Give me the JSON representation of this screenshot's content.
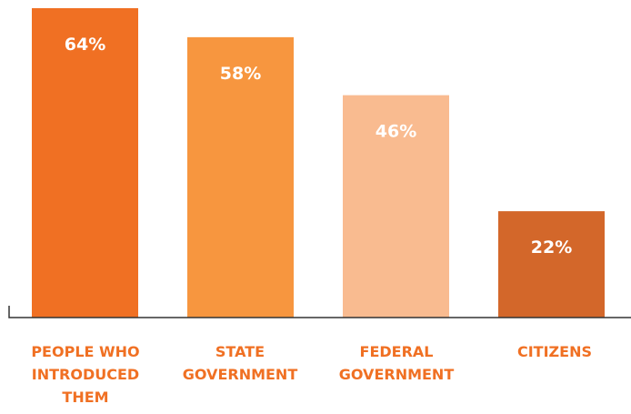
{
  "chart_data": {
    "type": "bar",
    "categories": [
      [
        "PEOPLE WHO",
        "INTRODUCED",
        "THEM"
      ],
      [
        "STATE",
        "GOVERNMENT"
      ],
      [
        "FEDERAL",
        "GOVERNMENT"
      ],
      [
        "CITIZENS"
      ]
    ],
    "values": [
      64,
      58,
      46,
      22
    ],
    "value_labels": [
      "64%",
      "58%",
      "46%",
      "22%"
    ],
    "bar_colors": [
      "#f07023",
      "#f7963f",
      "#f9bb90",
      "#d3672a"
    ],
    "label_color": "#f07023",
    "axis_color": "#333333",
    "ylim": [
      0,
      64
    ],
    "grid": false,
    "legend": "none"
  }
}
